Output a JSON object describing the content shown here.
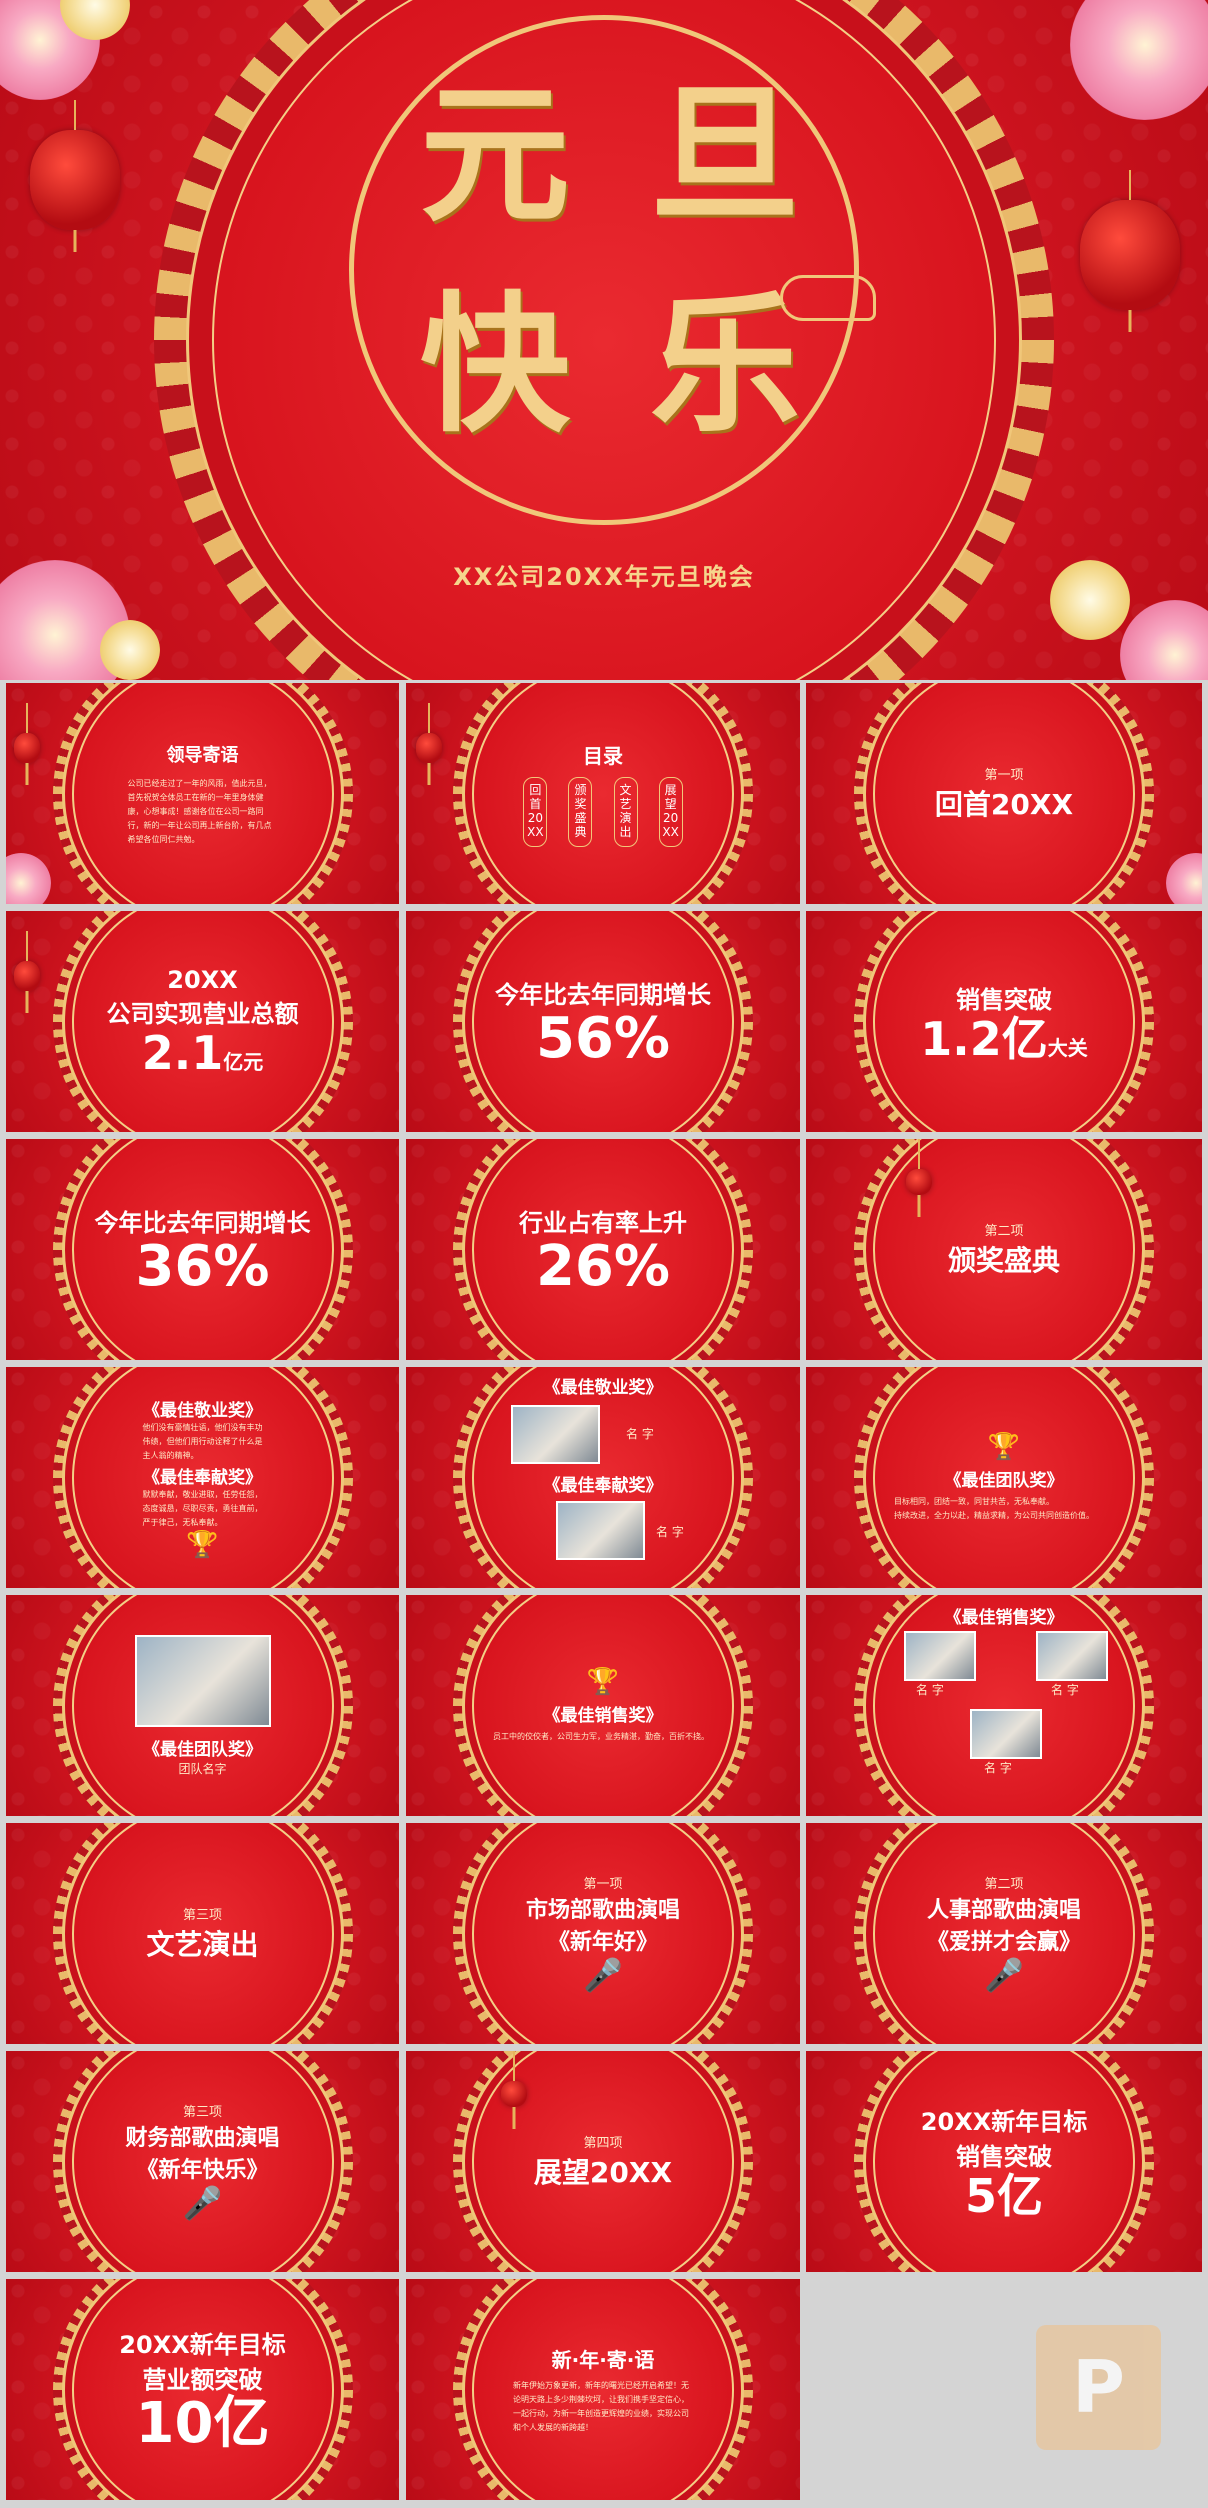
{
  "cover": {
    "title_chars": [
      "元",
      "旦",
      "快",
      "乐"
    ],
    "subtitle": "XX公司20XX年元旦晚会"
  },
  "slides": {
    "s1": {
      "title": "领导寄语",
      "body": "公司已经走过了一年的风雨，值此元旦，首先祝贺全体员工在新的一年里身体健康，心想事成！感谢各位在公司一路同行，新的一年让公司再上新台阶，有几点希望各位同仁共勉。"
    },
    "s2": {
      "title": "目录",
      "items": [
        "回首20XX",
        "颁奖盛典",
        "文艺演出",
        "展望20XX"
      ]
    },
    "s3": {
      "kicker": "第一项",
      "title": "回首20XX"
    },
    "s4": {
      "line1": "20XX",
      "line2": "公司实现营业总额",
      "value": "2.1",
      "unit": "亿元"
    },
    "s5": {
      "line1": "今年比去年同期增长",
      "value": "56%"
    },
    "s6": {
      "line1": "销售突破",
      "value": "1.2亿",
      "unit": "大关"
    },
    "s7": {
      "line1": "今年比去年同期增长",
      "value": "36%"
    },
    "s8": {
      "line1": "行业占有率上升",
      "value": "26%"
    },
    "s9": {
      "kicker": "第二项",
      "title": "颁奖盛典"
    },
    "s10": {
      "award1": "《最佳敬业奖》",
      "text1": "他们没有豪情壮语，他们没有丰功伟绩，但他们用行动诠释了什么是主人翁的精神。",
      "award2": "《最佳奉献奖》",
      "text2": "默默奉献，敬业进取，任劳任怨，态度诚恳，尽职尽责，勇往直前，严于律己，无私奉献。"
    },
    "s11": {
      "award1": "《最佳敬业奖》",
      "name1": "名 字",
      "award2": "《最佳奉献奖》",
      "name2": "名 字"
    },
    "s12": {
      "award": "《最佳团队奖》",
      "bullet1": "目标相同，团结一致，同甘共苦，无私奉献。",
      "bullet2": "持续改进，全力以赴，精益求精，为公司共同创造价值。"
    },
    "s13": {
      "award": "《最佳团队奖》",
      "name": "团队名字"
    },
    "s14": {
      "award": "《最佳销售奖》",
      "bullet": "员工中的佼佼者，公司生力军，业务精湛，勤奋，百折不挠。"
    },
    "s15": {
      "award": "《最佳销售奖》",
      "names": [
        "名 字",
        "名 字",
        "名 字"
      ]
    },
    "s16": {
      "kicker": "第三项",
      "title": "文艺演出"
    },
    "s17": {
      "kicker": "第一项",
      "line1": "市场部歌曲演唱",
      "line2": "《新年好》"
    },
    "s18": {
      "kicker": "第二项",
      "line1": "人事部歌曲演唱",
      "line2": "《爱拼才会赢》"
    },
    "s19": {
      "kicker": "第三项",
      "line1": "财务部歌曲演唱",
      "line2": "《新年快乐》"
    },
    "s20": {
      "kicker": "第四项",
      "title": "展望20XX"
    },
    "s21": {
      "line1": "20XX新年目标",
      "line2": "销售突破",
      "value": "5亿"
    },
    "s22": {
      "line1": "20XX新年目标",
      "line2": "营业额突破",
      "value": "10亿"
    },
    "s23": {
      "title": "新·年·寄·语",
      "body": "新年伊始万象更新，新年的曙光已经开启希望！无论明天路上多少荆棘坎坷，让我们携手坚定信心，一起行动，为新一年创造更辉煌的业绩，实现公司和个人发展的新跨越！"
    }
  },
  "icons": {
    "trophy": "trophy-icon",
    "microphone": "microphone-icon",
    "lantern": "lantern-icon",
    "logo": "watermark-logo"
  },
  "colors": {
    "red": "#d11520",
    "gold": "#f0c77a",
    "pink": "#ee7fa4"
  }
}
